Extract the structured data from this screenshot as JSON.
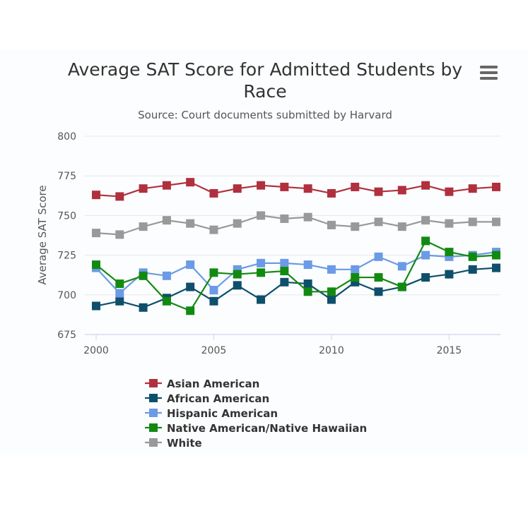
{
  "menu": {
    "icon": "hamburger-menu-icon"
  },
  "chart_data": {
    "type": "line",
    "title": "Average SAT Score for Admitted Students by Race",
    "subtitle": "Source: Court documents submitted by Harvard",
    "ylabel": "Average SAT Score",
    "xlabel": "",
    "x": [
      2000,
      2001,
      2002,
      2003,
      2004,
      2005,
      2006,
      2007,
      2008,
      2009,
      2010,
      2011,
      2012,
      2013,
      2014,
      2015,
      2016,
      2017
    ],
    "xticks": [
      2000,
      2005,
      2010,
      2015
    ],
    "yticks": [
      675,
      700,
      725,
      750,
      775,
      800
    ],
    "xlim": [
      2000,
      2017
    ],
    "ylim": [
      675,
      800
    ],
    "grid": true,
    "legend_position": "bottom",
    "marker": "square",
    "series": [
      {
        "name": "Asian American",
        "color": "#b0303d",
        "values": [
          763,
          762,
          767,
          769,
          771,
          764,
          767,
          769,
          768,
          767,
          764,
          768,
          765,
          766,
          769,
          765,
          767,
          768
        ]
      },
      {
        "name": "African American",
        "color": "#0e4f6b",
        "values": [
          693,
          696,
          692,
          698,
          705,
          696,
          706,
          697,
          708,
          707,
          697,
          708,
          702,
          705,
          711,
          713,
          716,
          717
        ]
      },
      {
        "name": "Hispanic American",
        "color": "#6b9ae6",
        "values": [
          717,
          701,
          714,
          712,
          719,
          703,
          716,
          720,
          720,
          719,
          716,
          716,
          724,
          718,
          725,
          724,
          725,
          727
        ]
      },
      {
        "name": "Native American/Native Hawaiian",
        "color": "#128a12",
        "values": [
          719,
          707,
          712,
          696,
          690,
          714,
          713,
          714,
          715,
          702,
          702,
          711,
          711,
          705,
          734,
          727,
          724,
          725
        ]
      },
      {
        "name": "White",
        "color": "#999999",
        "values": [
          739,
          738,
          743,
          747,
          745,
          741,
          745,
          750,
          748,
          749,
          744,
          743,
          746,
          743,
          747,
          745,
          746,
          746
        ]
      }
    ]
  }
}
